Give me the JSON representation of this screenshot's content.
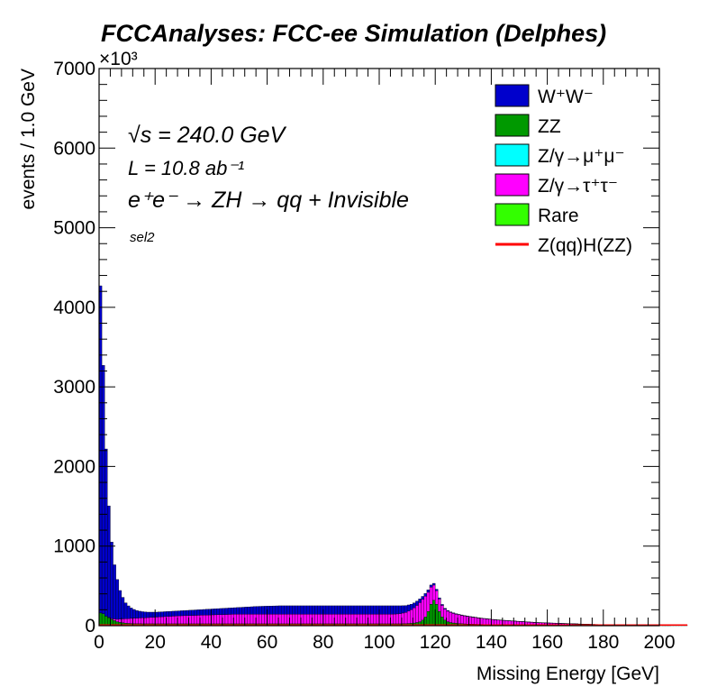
{
  "chart_data": {
    "type": "stacked-histogram",
    "title": "FCCAnalyses: FCC-ee Simulation (Delphes)",
    "xlabel": "Missing Energy [GeV]",
    "ylabel": "events / 1.0 GeV",
    "y_multiplier": "×10³",
    "xlim": [
      0,
      200
    ],
    "ylim": [
      0,
      7000
    ],
    "x_ticks": [
      0,
      20,
      40,
      60,
      80,
      100,
      120,
      140,
      160,
      180,
      200
    ],
    "y_ticks": [
      0,
      1000,
      2000,
      3000,
      4000,
      5000,
      6000,
      7000
    ],
    "y_scale_note": "y values in units of 10^3 events per 1.0 GeV bin",
    "bin_edges_start": 0,
    "bin_width": 1.0,
    "series": [
      {
        "name": "Rare",
        "color": "#33ff00",
        "values": []
      },
      {
        "name": "ZZ",
        "color": "#009900",
        "values": [
          160,
          150,
          120,
          100,
          80,
          65,
          50,
          42,
          36,
          32,
          29,
          27,
          26,
          25,
          25,
          24,
          24,
          24,
          24,
          24,
          24,
          24,
          24,
          24,
          24,
          24,
          24,
          24,
          24,
          24,
          24,
          24,
          24,
          24,
          24,
          24,
          24,
          24,
          24,
          24,
          24,
          24,
          24,
          24,
          24,
          24,
          24,
          24,
          24,
          24,
          24,
          24,
          24,
          24,
          24,
          24,
          24,
          24,
          24,
          24,
          24,
          24,
          24,
          24,
          24,
          24,
          24,
          24,
          24,
          24,
          24,
          24,
          24,
          24,
          24,
          24,
          24,
          24,
          24,
          24,
          24,
          24,
          24,
          24,
          24,
          24,
          24,
          24,
          24,
          24,
          24,
          24,
          24,
          24,
          24,
          24,
          24,
          24,
          24,
          24,
          24,
          24,
          24,
          24,
          24,
          24,
          24,
          24,
          25,
          26,
          28,
          30,
          34,
          40,
          50,
          70,
          110,
          180,
          270,
          320,
          270,
          180,
          110,
          70,
          50,
          40,
          34,
          30,
          27,
          25,
          23,
          21,
          20,
          19,
          18,
          17,
          16,
          15,
          14,
          14,
          13,
          13,
          12,
          12,
          11,
          11,
          10,
          10,
          10,
          9,
          9,
          9,
          8,
          8,
          8,
          7,
          7,
          7,
          7,
          6,
          6,
          6,
          6,
          6,
          5,
          5,
          5,
          5,
          5,
          5,
          5,
          4,
          4,
          4,
          4,
          4,
          4,
          4,
          4,
          4,
          4,
          3,
          3,
          3,
          3,
          3,
          3,
          3,
          3,
          3,
          3,
          3,
          3,
          3,
          3,
          3,
          3,
          3,
          3,
          3,
          3,
          3,
          3,
          3,
          3,
          3,
          3,
          3,
          3,
          3
        ]
      },
      {
        "name": "Z/γ→μ⁺μ⁻",
        "color": "#00ffff",
        "values": []
      },
      {
        "name": "Z/γ→τ⁺τ⁻",
        "color": "#ff00ff",
        "values": [
          0,
          0,
          0,
          5,
          10,
          20,
          30,
          40,
          50,
          55,
          60,
          65,
          68,
          70,
          72,
          74,
          76,
          78,
          80,
          82,
          84,
          86,
          88,
          90,
          92,
          94,
          96,
          98,
          100,
          101,
          102,
          103,
          104,
          105,
          106,
          107,
          108,
          109,
          110,
          111,
          112,
          113,
          114,
          115,
          116,
          117,
          118,
          119,
          120,
          120,
          120,
          120,
          120,
          120,
          120,
          120,
          120,
          120,
          120,
          120,
          120,
          120,
          120,
          120,
          120,
          120,
          120,
          120,
          120,
          120,
          120,
          120,
          120,
          120,
          120,
          120,
          120,
          120,
          120,
          120,
          120,
          120,
          120,
          120,
          120,
          120,
          120,
          120,
          120,
          120,
          120,
          120,
          120,
          120,
          120,
          120,
          120,
          120,
          120,
          120,
          120,
          120,
          120,
          120,
          120,
          122,
          124,
          128,
          134,
          142,
          155,
          170,
          190,
          215,
          240,
          260,
          260,
          240,
          215,
          190,
          170,
          155,
          145,
          138,
          132,
          126,
          120,
          115,
          110,
          105,
          100,
          96,
          92,
          88,
          84,
          80,
          77,
          74,
          71,
          68,
          65,
          62,
          60,
          58,
          56,
          54,
          52,
          50,
          48,
          46,
          44,
          42,
          40,
          38,
          36,
          34,
          32,
          31,
          30,
          29,
          28,
          27,
          26,
          25,
          24,
          23,
          22,
          21,
          20,
          19,
          18,
          17,
          16,
          15,
          14,
          13,
          12,
          11,
          10,
          9,
          8,
          7,
          6,
          5,
          5,
          5,
          4,
          4,
          4,
          4,
          3,
          3,
          3,
          3,
          2,
          2,
          2,
          2,
          2,
          2,
          2
        ]
      },
      {
        "name": "W⁺W⁻",
        "color": "#0000cc",
        "values": [
          4110,
          3120,
          2100,
          1400,
          960,
          680,
          500,
          360,
          270,
          200,
          160,
          130,
          110,
          95,
          85,
          78,
          72,
          68,
          66,
          64,
          62,
          62,
          62,
          62,
          62,
          62,
          62,
          62,
          62,
          63,
          64,
          65,
          66,
          67,
          68,
          69,
          70,
          71,
          72,
          73,
          74,
          75,
          76,
          77,
          78,
          79,
          80,
          81,
          82,
          84,
          86,
          88,
          90,
          92,
          94,
          96,
          98,
          99,
          100,
          101,
          102,
          103,
          104,
          105,
          106,
          106,
          106,
          106,
          106,
          106,
          106,
          106,
          106,
          106,
          106,
          106,
          106,
          106,
          106,
          106,
          106,
          106,
          106,
          106,
          106,
          106,
          106,
          106,
          106,
          106,
          106,
          106,
          106,
          106,
          106,
          106,
          106,
          106,
          106,
          106,
          106,
          106,
          106,
          106,
          106,
          104,
          102,
          98,
          92,
          85,
          78,
          70,
          62,
          54,
          46,
          38,
          34,
          30,
          26,
          22,
          18,
          15,
          12,
          10,
          9,
          8,
          7,
          6,
          5,
          5,
          4,
          4,
          3,
          3,
          3,
          2,
          2,
          2,
          2,
          2,
          1,
          1,
          1,
          1,
          1,
          1,
          1,
          1,
          1,
          1,
          1,
          1,
          1,
          1,
          1,
          1,
          1,
          1,
          1,
          1,
          1,
          1,
          1,
          1,
          1,
          1,
          1,
          1,
          1,
          1,
          1,
          1,
          1,
          1,
          1,
          1,
          1,
          1,
          1,
          1,
          1,
          1,
          1,
          1,
          1,
          1,
          1,
          1,
          1,
          1,
          1,
          1,
          1,
          1,
          1,
          1,
          1,
          1,
          1,
          1,
          1,
          1,
          1,
          1
        ]
      },
      {
        "name": "Z(qq)H(ZZ)",
        "color": "#ff0000",
        "type": "line",
        "values": []
      }
    ],
    "legend": {
      "placement": "top-right",
      "entries": [
        {
          "label": "W⁺W⁻",
          "key": "WW",
          "color": "#0000cc",
          "style": "box"
        },
        {
          "label": "ZZ",
          "key": "ZZ",
          "color": "#009900",
          "style": "box"
        },
        {
          "label": "Z/γ→μ⁺μ⁻",
          "key": "Zmm",
          "color": "#00ffff",
          "style": "box"
        },
        {
          "label": "Z/γ→τ⁺τ⁻",
          "key": "Ztt",
          "color": "#ff00ff",
          "style": "box"
        },
        {
          "label": "Rare",
          "key": "Rare",
          "color": "#33ff00",
          "style": "box"
        },
        {
          "label": "Z(qq)H(ZZ)",
          "key": "sig",
          "color": "#ff0000",
          "style": "line"
        }
      ]
    },
    "annotations": {
      "sqrt_s": "√s = 240.0 GeV",
      "lumi": "L = 10.8 ab⁻¹",
      "process": "e⁺e⁻ → ZH → qq + Invisible",
      "selection": "sel2"
    }
  }
}
